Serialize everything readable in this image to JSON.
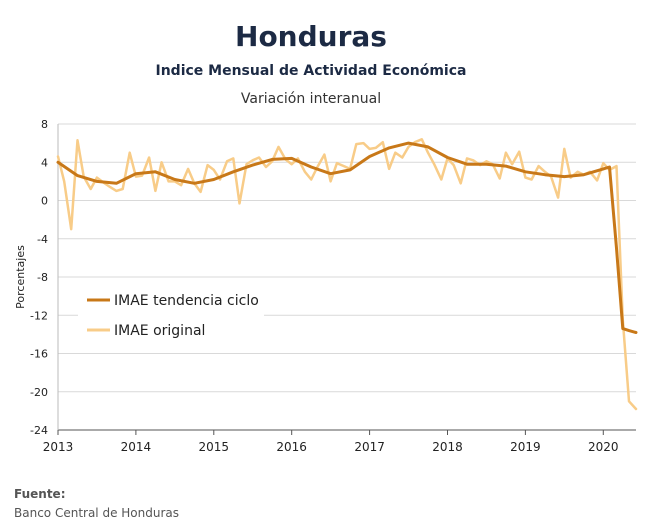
{
  "header": {
    "title": "Honduras",
    "subtitle": "Indice Mensual de  Actividad Económica",
    "subtitle2": "Variación interanual"
  },
  "source": {
    "label": "Fuente:",
    "text": "Banco Central de Honduras"
  },
  "colors": {
    "trend": "#c87818",
    "original": "#f8cc88",
    "grid": "#d9d9d9"
  },
  "chart_data": {
    "type": "line",
    "title": "Honduras",
    "ylabel": "Porcentajes",
    "ylim": [
      -24,
      8
    ],
    "xlim": [
      2013,
      2020.42
    ],
    "yticks": [
      8,
      4,
      0,
      -4,
      -8,
      -12,
      -16,
      -20,
      -24
    ],
    "xticks": [
      "2013",
      "2014",
      "2015",
      "2016",
      "2017",
      "2018",
      "2019",
      "2020"
    ],
    "legend": "left-middle",
    "grid": "horizontal",
    "series": [
      {
        "name": "IMAE tendencia ciclo",
        "x": [
          2013.0,
          2013.25,
          2013.5,
          2013.75,
          2014.0,
          2014.25,
          2014.5,
          2014.75,
          2015.0,
          2015.25,
          2015.5,
          2015.75,
          2016.0,
          2016.25,
          2016.5,
          2016.75,
          2017.0,
          2017.25,
          2017.5,
          2017.75,
          2018.0,
          2018.25,
          2018.5,
          2018.75,
          2019.0,
          2019.25,
          2019.5,
          2019.75,
          2020.0,
          2020.08,
          2020.17,
          2020.25,
          2020.33,
          2020.42
        ],
        "y": [
          4.0,
          2.6,
          2.0,
          1.8,
          2.8,
          3.0,
          2.2,
          1.8,
          2.2,
          3.0,
          3.7,
          4.3,
          4.4,
          3.5,
          2.8,
          3.2,
          4.6,
          5.5,
          6.0,
          5.6,
          4.5,
          3.8,
          3.8,
          3.6,
          3.0,
          2.7,
          2.5,
          2.7,
          3.3,
          3.5,
          -5.0,
          -13.4,
          -13.6,
          -13.8
        ]
      },
      {
        "name": "IMAE original",
        "x": [
          2013.0,
          2013.08,
          2013.17,
          2013.25,
          2013.33,
          2013.42,
          2013.5,
          2013.58,
          2013.67,
          2013.75,
          2013.83,
          2013.92,
          2014.0,
          2014.08,
          2014.17,
          2014.25,
          2014.33,
          2014.42,
          2014.5,
          2014.58,
          2014.67,
          2014.75,
          2014.83,
          2014.92,
          2015.0,
          2015.08,
          2015.17,
          2015.25,
          2015.33,
          2015.42,
          2015.5,
          2015.58,
          2015.67,
          2015.75,
          2015.83,
          2015.92,
          2016.0,
          2016.08,
          2016.17,
          2016.25,
          2016.33,
          2016.42,
          2016.5,
          2016.58,
          2016.67,
          2016.75,
          2016.83,
          2016.92,
          2017.0,
          2017.08,
          2017.17,
          2017.25,
          2017.33,
          2017.42,
          2017.5,
          2017.58,
          2017.67,
          2017.75,
          2017.83,
          2017.92,
          2018.0,
          2018.08,
          2018.17,
          2018.25,
          2018.33,
          2018.42,
          2018.5,
          2018.58,
          2018.67,
          2018.75,
          2018.83,
          2018.92,
          2019.0,
          2019.08,
          2019.17,
          2019.25,
          2019.33,
          2019.42,
          2019.5,
          2019.58,
          2019.67,
          2019.75,
          2019.83,
          2019.92,
          2020.0,
          2020.08,
          2020.17,
          2020.25,
          2020.33,
          2020.42
        ],
        "y": [
          4.6,
          2.0,
          -3.0,
          6.3,
          2.5,
          1.2,
          2.4,
          1.9,
          1.4,
          1.0,
          1.2,
          5.0,
          2.5,
          2.6,
          4.5,
          1.0,
          4.0,
          2.0,
          2.0,
          1.6,
          3.3,
          1.8,
          0.9,
          3.7,
          3.2,
          2.2,
          4.1,
          4.4,
          -0.3,
          3.8,
          4.2,
          4.5,
          3.5,
          4.1,
          5.6,
          4.3,
          3.8,
          4.4,
          3.0,
          2.2,
          3.5,
          4.8,
          2.0,
          3.9,
          3.6,
          3.3,
          5.9,
          6.0,
          5.4,
          5.5,
          6.1,
          3.3,
          5.0,
          4.5,
          5.6,
          6.1,
          6.4,
          5.0,
          3.8,
          2.2,
          4.4,
          3.7,
          1.8,
          4.4,
          4.2,
          3.7,
          4.1,
          3.8,
          2.3,
          5.0,
          3.8,
          5.1,
          2.4,
          2.2,
          3.6,
          3.0,
          2.5,
          0.3,
          5.4,
          2.4,
          3.0,
          2.7,
          3.0,
          2.1,
          3.9,
          3.2,
          3.6,
          -12.5,
          -21.0,
          -21.8
        ]
      }
    ]
  }
}
